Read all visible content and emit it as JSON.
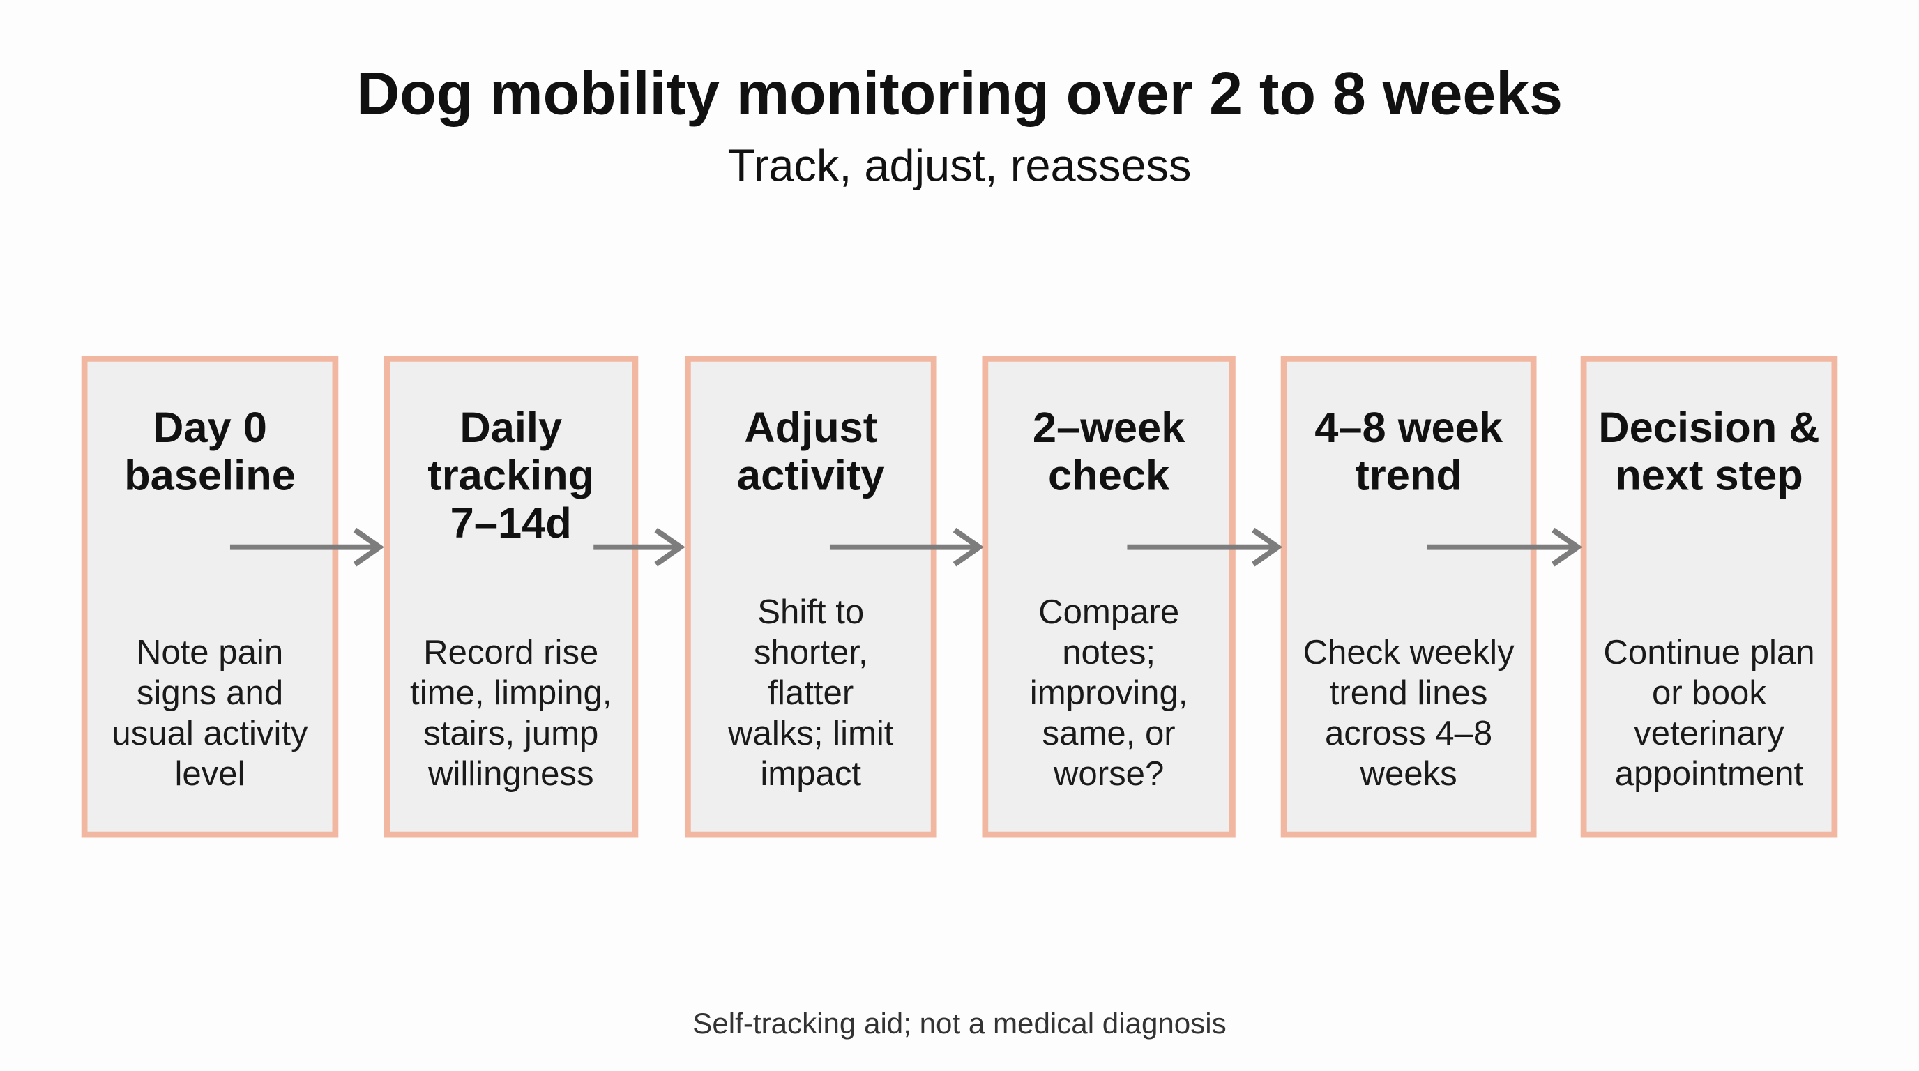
{
  "header": {
    "title": "Dog mobility monitoring over 2 to 8 weeks",
    "subtitle": "Track, adjust, reassess"
  },
  "steps": [
    {
      "title": [
        "Day 0",
        "baseline"
      ],
      "description": [
        "Note pain",
        "signs and",
        "usual activity",
        "level"
      ]
    },
    {
      "title": [
        "Daily",
        "tracking",
        "7–14d"
      ],
      "description": [
        "Record rise",
        "time, limping,",
        "stairs, jump",
        "willingness"
      ]
    },
    {
      "title": [
        "Adjust",
        "activity"
      ],
      "description": [
        "Shift to",
        "shorter,",
        "flatter",
        "walks; limit",
        "impact"
      ]
    },
    {
      "title": [
        "2–week",
        "check"
      ],
      "description": [
        "Compare",
        "notes;",
        "improving,",
        "same, or",
        "worse?"
      ]
    },
    {
      "title": [
        "4–8 week",
        "trend"
      ],
      "description": [
        "Check weekly",
        "trend lines",
        "across 4–8",
        "weeks"
      ]
    },
    {
      "title": [
        "Decision &",
        "next step"
      ],
      "description": [
        "Continue plan",
        "or book",
        "veterinary",
        "appointment"
      ]
    }
  ],
  "footnote": "Self-tracking aid; not a medical diagnosis"
}
